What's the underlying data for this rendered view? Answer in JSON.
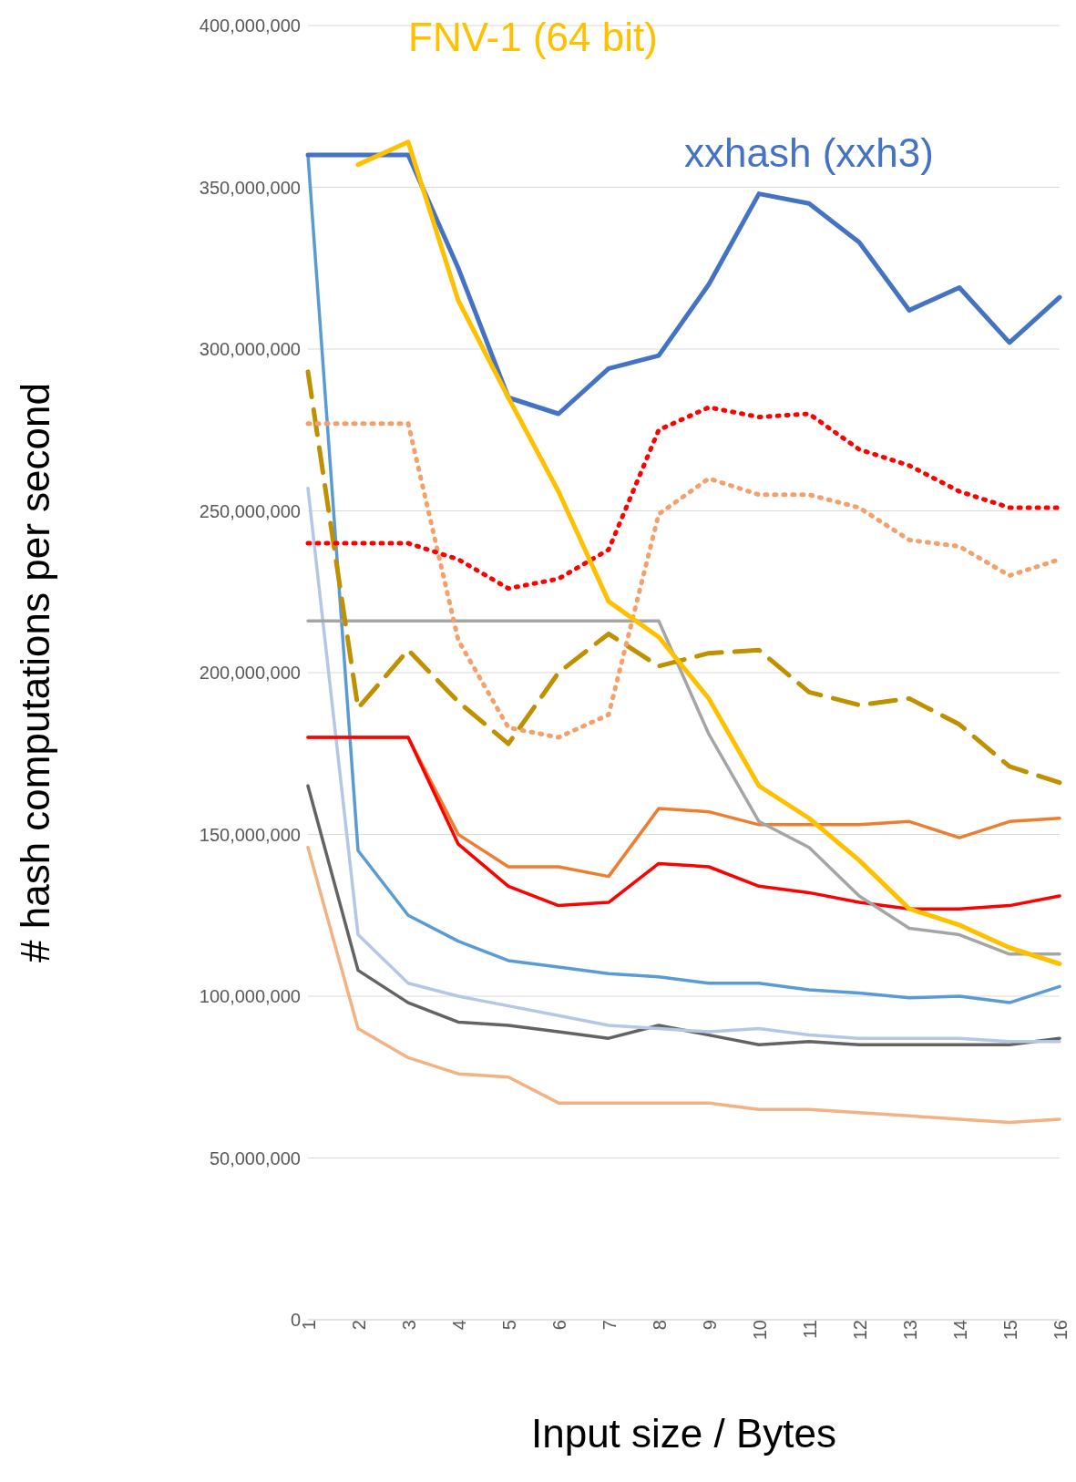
{
  "chart_data": {
    "type": "line",
    "xlabel": "Input size / Bytes",
    "ylabel": "# hash computations per second",
    "categories": [
      "1",
      "2",
      "3",
      "4",
      "5",
      "6",
      "7",
      "8",
      "9",
      "10",
      "11",
      "12",
      "13",
      "14",
      "15",
      "16"
    ],
    "ylim": [
      0,
      400000000
    ],
    "yticks": [
      0,
      {
        "value": 50000000,
        "label": "50,000,000"
      },
      {
        "value": 100000000,
        "label": "100,000,000"
      },
      {
        "value": 150000000,
        "label": "150,000,000"
      },
      {
        "value": 200000000,
        "label": "200,000,000"
      },
      {
        "value": 250000000,
        "label": "250,000,000"
      },
      {
        "value": 300000000,
        "label": "300,000,000"
      },
      {
        "value": 350000000,
        "label": "350,000,000"
      },
      {
        "value": 400000000,
        "label": "400,000,000"
      }
    ],
    "grid": "y",
    "marker": "none",
    "series": [
      {
        "color": "#f4b183",
        "values": [
          146000000,
          90000000,
          81000000,
          76000000,
          75000000,
          67000000,
          67000000,
          67000000,
          67000000,
          65000000,
          65000000,
          64000000,
          63000000,
          62000000,
          61000000,
          62000000
        ]
      },
      {
        "color": "#636363",
        "values": [
          165000000,
          108000000,
          98000000,
          92000000,
          91000000,
          89000000,
          87000000,
          91000000,
          88000000,
          85000000,
          86000000,
          85000000,
          85000000,
          85000000,
          85000000,
          87000000
        ]
      },
      {
        "color": "#b4c7e7",
        "values": [
          257000000,
          119000000,
          104000000,
          100000000,
          97000000,
          94000000,
          91000000,
          90000000,
          89000000,
          90000000,
          88000000,
          87000000,
          87000000,
          87000000,
          86000000,
          86000000
        ]
      },
      {
        "color": "#5b9bd5",
        "values": [
          360000000,
          145000000,
          125000000,
          117000000,
          111000000,
          109000000,
          107000000,
          106000000,
          104000000,
          104000000,
          102000000,
          101000000,
          99500000,
          100000000,
          98000000,
          103000000
        ]
      },
      {
        "color": "#ed7d31",
        "values": [
          180000000,
          180000000,
          180000000,
          150000000,
          140000000,
          140000000,
          137000000,
          158000000,
          157000000,
          153000000,
          153000000,
          153000000,
          154000000,
          149000000,
          154000000,
          155000000
        ]
      },
      {
        "color": "#ff0000",
        "values": [
          180000000,
          180000000,
          180000000,
          147000000,
          134000000,
          128000000,
          129000000,
          141000000,
          140000000,
          134000000,
          132000000,
          129000000,
          127000000,
          127000000,
          128000000,
          131000000
        ]
      },
      {
        "color": "#a5a5a5",
        "values": [
          216000000,
          216000000,
          216000000,
          216000000,
          216000000,
          216000000,
          216000000,
          216000000,
          181000000,
          154000000,
          146000000,
          131000000,
          121000000,
          119000000,
          113000000,
          113000000
        ]
      },
      {
        "color": "#bf9000",
        "line_style": "dashed",
        "values": [
          293000000,
          189000000,
          207000000,
          191000000,
          178000000,
          200000000,
          212000000,
          202000000,
          206000000,
          207000000,
          194000000,
          190000000,
          192000000,
          184000000,
          171000000,
          166000000
        ]
      },
      {
        "color": "#f4a06a",
        "line_style": "dotted",
        "values": [
          277000000,
          277000000,
          277000000,
          210000000,
          183000000,
          180000000,
          187000000,
          249000000,
          260000000,
          255000000,
          255000000,
          251000000,
          241000000,
          239000000,
          230000000,
          235000000
        ]
      },
      {
        "color": "#ff0000",
        "line_style": "dotted",
        "values": [
          240000000,
          240000000,
          240000000,
          235000000,
          226000000,
          229000000,
          238000000,
          275000000,
          282000000,
          279000000,
          280000000,
          269000000,
          264000000,
          256000000,
          251000000,
          251000000
        ]
      },
      {
        "name": "xxhash (xxh3)",
        "color": "#4472c4",
        "values": [
          360000000,
          360000000,
          360000000,
          325000000,
          285000000,
          280000000,
          294000000,
          298000000,
          320000000,
          348000000,
          345000000,
          333000000,
          312000000,
          319000000,
          302000000,
          316000000
        ]
      },
      {
        "name": "FNV-1 (64 bit)",
        "color": "#ffc000",
        "values": [
          null,
          357000000,
          364000000,
          315000000,
          285000000,
          256000000,
          222000000,
          211000000,
          192000000,
          165000000,
          155000000,
          142000000,
          127000000,
          122000000,
          115000000,
          110000000
        ]
      }
    ]
  }
}
